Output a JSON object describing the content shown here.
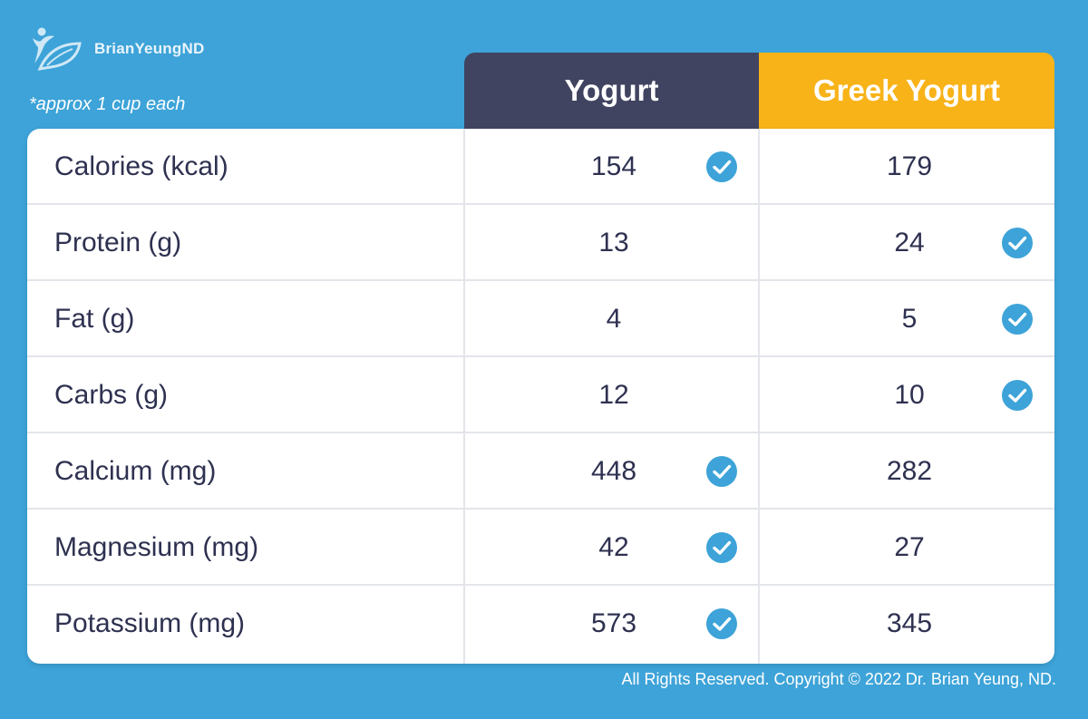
{
  "brand": {
    "name": "BrianYeungND"
  },
  "note": "*approx 1 cup each",
  "accent_colors": {
    "background": "#3da3d8",
    "yogurt_header": "#404461",
    "greek_header": "#f8b319",
    "check": "#3da3d8"
  },
  "chart_data": {
    "type": "table",
    "columns": [
      "Yogurt",
      "Greek Yogurt"
    ],
    "rows": [
      {
        "nutrient": "Calories (kcal)",
        "yogurt": "154",
        "greek": "179",
        "check": "yogurt"
      },
      {
        "nutrient": "Protein (g)",
        "yogurt": "13",
        "greek": "24",
        "check": "greek"
      },
      {
        "nutrient": "Fat (g)",
        "yogurt": "4",
        "greek": "5",
        "check": "greek"
      },
      {
        "nutrient": "Carbs (g)",
        "yogurt": "12",
        "greek": "10",
        "check": "greek"
      },
      {
        "nutrient": "Calcium (mg)",
        "yogurt": "448",
        "greek": "282",
        "check": "yogurt"
      },
      {
        "nutrient": "Magnesium (mg)",
        "yogurt": "42",
        "greek": "27",
        "check": "yogurt"
      },
      {
        "nutrient": "Potassium (mg)",
        "yogurt": "573",
        "greek": "345",
        "check": "yogurt"
      }
    ]
  },
  "footer": "All Rights Reserved. Copyright © 2022 Dr. Brian Yeung, ND."
}
